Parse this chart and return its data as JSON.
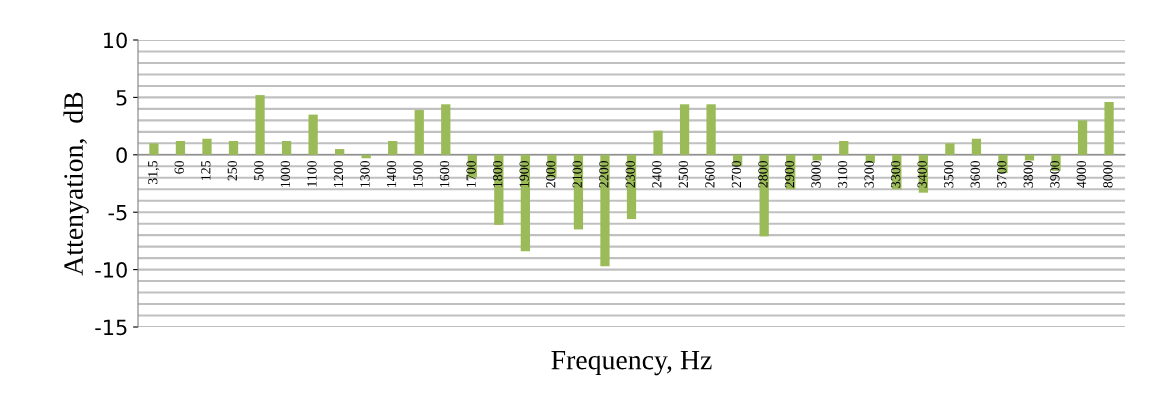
{
  "chart_data": {
    "type": "bar",
    "xlabel": "Frequency, Hz",
    "ylabel": "Attenyation,  dB",
    "categories": [
      "31,5",
      "60",
      "125",
      "250",
      "500",
      "1000",
      "1100",
      "1200",
      "1300",
      "1400",
      "1500",
      "1600",
      "1700",
      "1800",
      "1900",
      "2000",
      "2100",
      "2200",
      "2300",
      "2400",
      "2500",
      "2600",
      "2700",
      "2800",
      "2900",
      "3000",
      "3100",
      "3200",
      "3300",
      "3400",
      "3500",
      "3600",
      "3700",
      "3800",
      "3900",
      "4000",
      "8000"
    ],
    "values": [
      1.0,
      1.2,
      1.4,
      1.2,
      5.2,
      1.2,
      3.5,
      0.5,
      -0.3,
      1.2,
      3.9,
      4.4,
      -2.0,
      -6.1,
      -8.4,
      -2.0,
      -6.5,
      -9.7,
      -5.6,
      2.1,
      4.4,
      4.4,
      -1.0,
      -7.1,
      -3.0,
      -0.5,
      1.2,
      -0.7,
      -3.0,
      -3.3,
      1.0,
      1.4,
      -1.6,
      -0.5,
      -1.4,
      3.0,
      4.6
    ],
    "color": "#9bbb59",
    "ylim": [
      -15,
      10
    ],
    "yticks": [
      -15,
      {
        "value": -14,
        "label": null
      },
      {
        "value": -13,
        "label": null
      },
      {
        "value": -12,
        "label": null
      },
      {
        "value": -11,
        "label": null
      },
      -10,
      {
        "value": -9,
        "label": null
      },
      {
        "value": -8,
        "label": null
      },
      {
        "value": -7,
        "label": null
      },
      {
        "value": -6,
        "label": null
      },
      -5,
      {
        "value": -4,
        "label": null
      },
      {
        "value": -3,
        "label": null
      },
      {
        "value": -2,
        "label": null
      },
      {
        "value": -1,
        "label": null
      },
      0,
      {
        "value": 1,
        "label": null
      },
      {
        "value": 2,
        "label": null
      },
      {
        "value": 3,
        "label": null
      },
      {
        "value": 4,
        "label": null
      },
      5,
      {
        "value": 6,
        "label": null
      },
      {
        "value": 7,
        "label": null
      },
      {
        "value": 8,
        "label": null
      },
      {
        "value": 9,
        "label": null
      },
      10
    ],
    "grid": "y",
    "legend": false
  }
}
